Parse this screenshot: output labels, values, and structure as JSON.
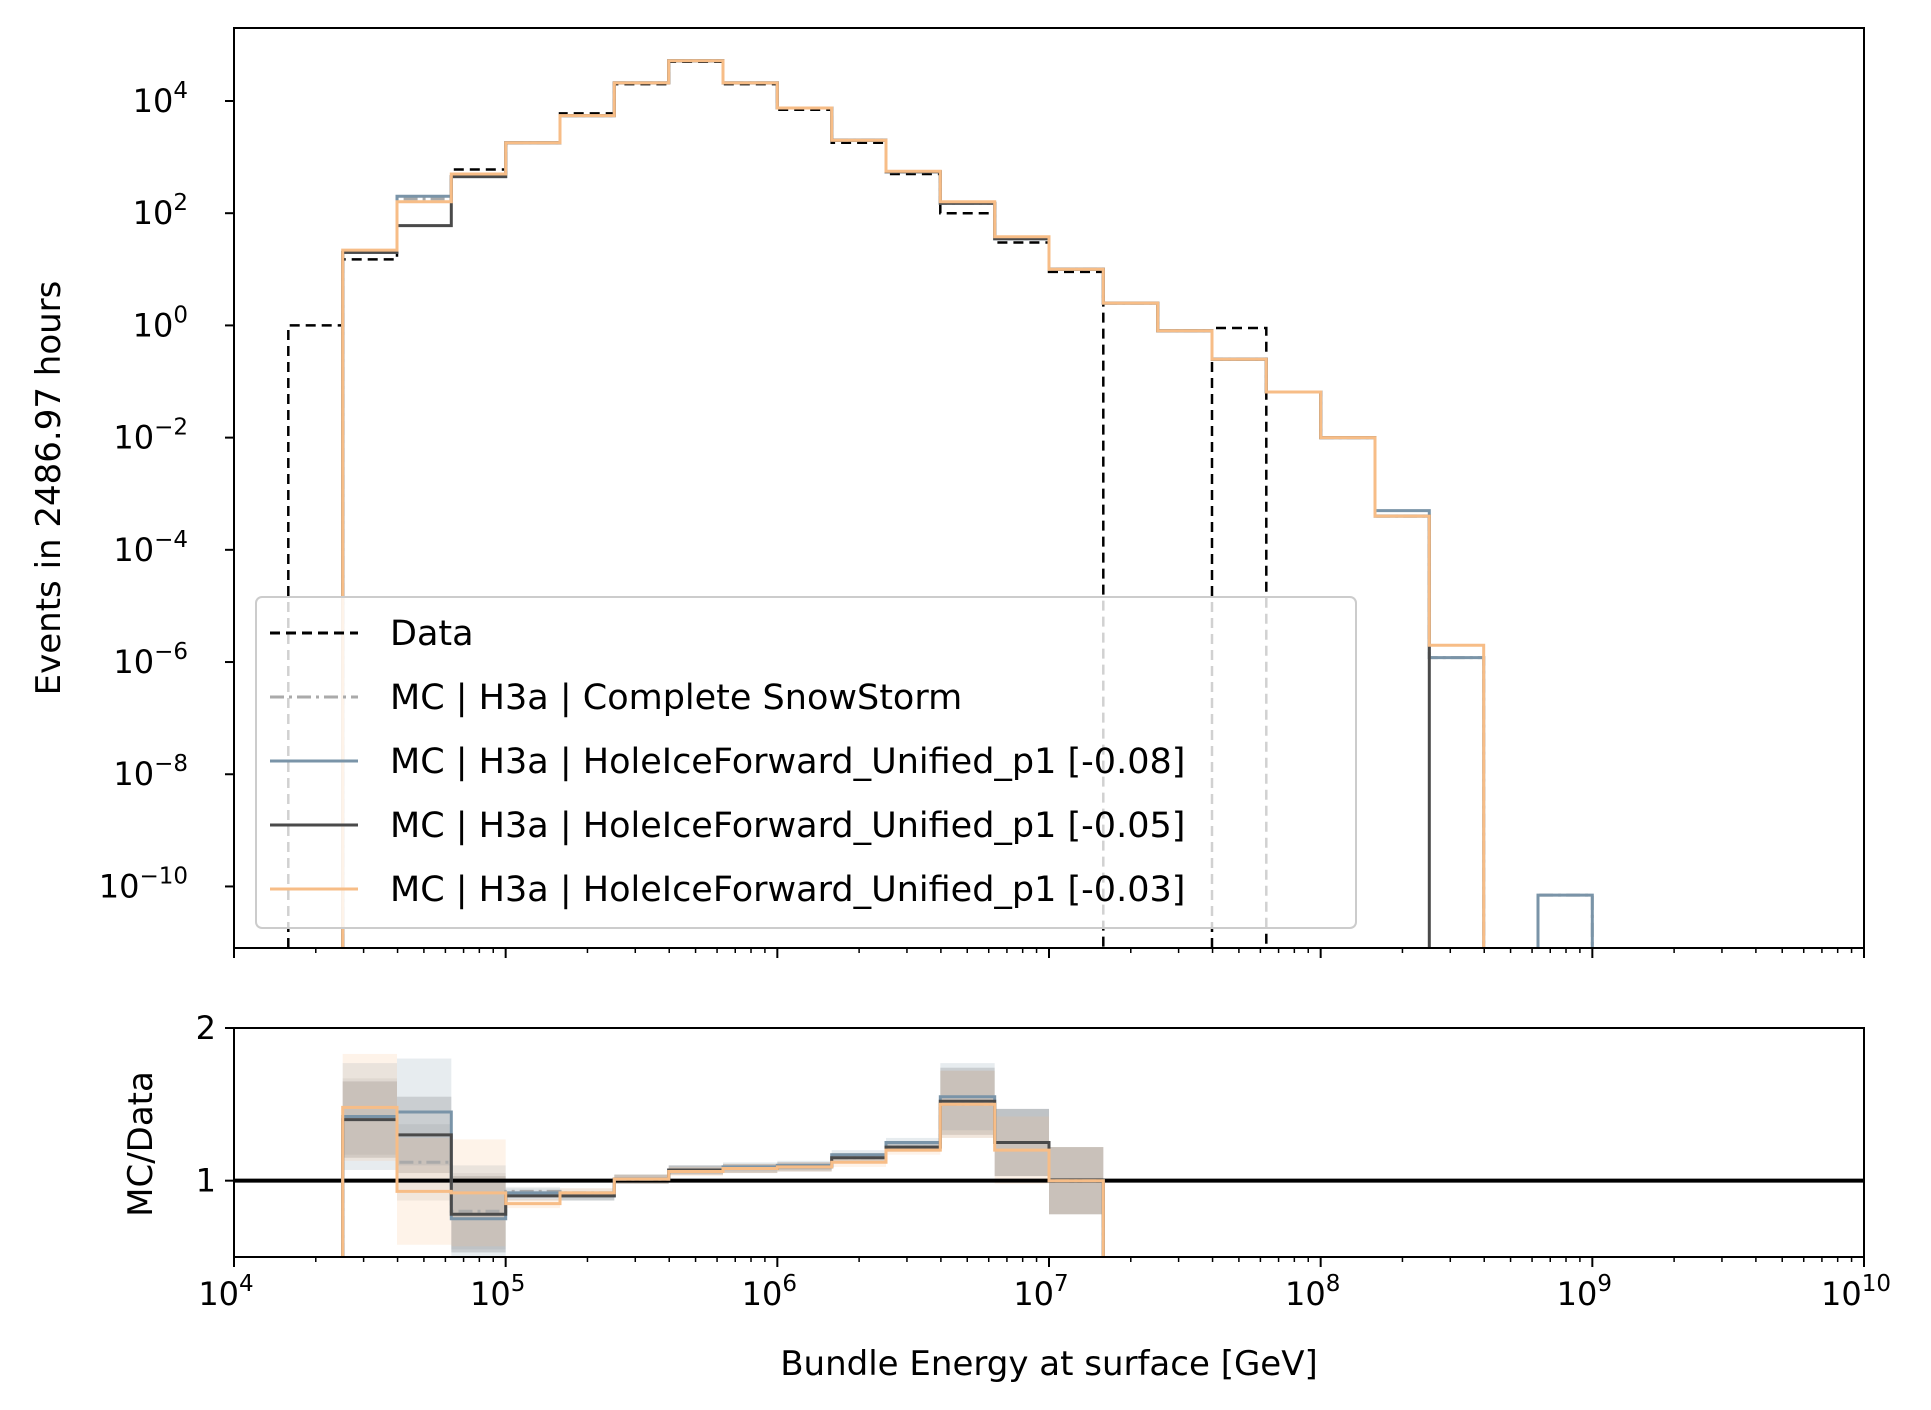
{
  "chart_data": [
    {
      "type": "step",
      "panel": "main",
      "ylabel": "Events in 2486.97 hours",
      "xscale": "log",
      "yscale": "log",
      "xlim": [
        10000,
        10000000000
      ],
      "ylim": [
        8e-12,
        200000
      ],
      "y_ticks": [
        {
          "value": 10000.0,
          "label": "10^4"
        },
        {
          "value": 100.0,
          "label": "10^2"
        },
        {
          "value": 1,
          "label": "10^0"
        },
        {
          "value": 0.01,
          "label": "10^-2"
        },
        {
          "value": 0.0001,
          "label": "10^-4"
        },
        {
          "value": 1e-06,
          "label": "10^-6"
        },
        {
          "value": 1e-08,
          "label": "10^-8"
        },
        {
          "value": 1e-10,
          "label": "10^-10"
        }
      ],
      "bin_edges_log10": [
        4.0,
        4.2,
        4.4,
        4.6,
        4.8,
        5.0,
        5.2,
        5.4,
        5.6,
        5.8,
        6.0,
        6.2,
        6.4,
        6.6,
        6.8,
        7.0,
        7.2,
        7.4,
        7.6,
        7.8,
        8.0,
        8.2,
        8.4,
        8.6,
        8.8,
        9.0,
        9.2,
        9.4,
        9.6,
        9.8,
        10.0
      ],
      "legend": {
        "location": "lower-left",
        "entries": [
          {
            "label": "Data",
            "style": "dashed",
            "color": "#000000"
          },
          {
            "label": "MC | H3a | Complete SnowStorm",
            "style": "dashdot",
            "color": "#aaaaaa"
          },
          {
            "label": "MC | H3a | HoleIceForward_Unified_p1 [-0.08]",
            "style": "solid",
            "color": "#7a94a8"
          },
          {
            "label": "MC | H3a | HoleIceForward_Unified_p1 [-0.05]",
            "style": "solid",
            "color": "#4a4a4a"
          },
          {
            "label": "MC | H3a | HoleIceForward_Unified_p1 [-0.03]",
            "style": "solid",
            "color": "#f7bd87"
          }
        ]
      },
      "series": [
        {
          "name": "Data",
          "color": "#000000",
          "values": [
            null,
            1,
            15,
            200,
            600,
            1800,
            6000,
            20000,
            50000,
            20000,
            7000,
            1800,
            500,
            100,
            30,
            9,
            null,
            null,
            0.9,
            null,
            null,
            null,
            null,
            null,
            null,
            null,
            null,
            null,
            null,
            null
          ]
        },
        {
          "name": "MC | H3a | Complete SnowStorm",
          "color": "#aaaaaa",
          "values": [
            null,
            null,
            20,
            180,
            500,
            1800,
            5500,
            21000,
            52000,
            21000,
            7500,
            2000,
            550,
            150,
            35,
            10,
            2.5,
            0.8,
            0.25,
            0.065,
            0.01,
            0.0004,
            1.2e-06,
            null,
            7e-11,
            null,
            null,
            null,
            null,
            null
          ]
        },
        {
          "name": "MC | H3a | HoleIceForward_Unified_p1 [-0.08]",
          "color": "#7a94a8",
          "values": [
            null,
            null,
            20,
            200,
            450,
            1800,
            5500,
            21000,
            52000,
            21000,
            7500,
            2000,
            550,
            150,
            35,
            10,
            2.5,
            0.8,
            0.25,
            0.065,
            0.01,
            0.0005,
            1.2e-06,
            null,
            7e-11,
            null,
            null,
            null,
            null,
            null
          ]
        },
        {
          "name": "MC | H3a | HoleIceForward_Unified_p1 [-0.05]",
          "color": "#4a4a4a",
          "values": [
            null,
            null,
            20,
            60,
            450,
            1800,
            5500,
            21000,
            52000,
            21000,
            7500,
            2000,
            550,
            150,
            35,
            10,
            2.5,
            0.8,
            0.25,
            0.065,
            0.01,
            0.0004,
            null,
            null,
            null,
            null,
            null,
            null,
            null,
            null
          ]
        },
        {
          "name": "MC | H3a | HoleIceForward_Unified_p1 [-0.03]",
          "color": "#f7bd87",
          "values": [
            null,
            null,
            22,
            160,
            500,
            1800,
            5500,
            21000,
            52000,
            21000,
            7500,
            2000,
            560,
            160,
            38,
            10,
            2.5,
            0.8,
            0.25,
            0.065,
            0.01,
            0.0004,
            2e-06,
            null,
            null,
            null,
            null,
            null,
            null,
            null
          ]
        }
      ]
    },
    {
      "type": "step",
      "panel": "ratio",
      "xlabel": "Bundle Energy at surface [GeV]",
      "ylabel": "MC/Data",
      "xscale": "log",
      "xlim": [
        10000,
        10000000000
      ],
      "ylim": [
        0.5,
        2
      ],
      "y_ticks": [
        {
          "value": 1,
          "label": "1"
        },
        {
          "value": 2,
          "label": "2"
        }
      ],
      "x_ticks": [
        {
          "value": 4,
          "label": "10^4"
        },
        {
          "value": 5,
          "label": "10^5"
        },
        {
          "value": 6,
          "label": "10^6"
        },
        {
          "value": 7,
          "label": "10^7"
        },
        {
          "value": 8,
          "label": "10^8"
        },
        {
          "value": 9,
          "label": "10^9"
        },
        {
          "value": 10,
          "label": "10^10"
        }
      ],
      "reference_line": 1,
      "series": [
        {
          "name": "MC | H3a | Complete SnowStorm",
          "color": "#aaaaaa",
          "values": [
            null,
            null,
            1.42,
            1.12,
            0.8,
            0.93,
            0.92,
            1.01,
            1.07,
            1.08,
            1.09,
            1.15,
            1.22,
            1.5,
            1.25,
            1.0
          ]
        },
        {
          "name": "MC | H3a | HoleIceForward_Unified_p1 [-0.08]",
          "color": "#7a94a8",
          "values": [
            null,
            null,
            1.42,
            1.45,
            0.75,
            0.92,
            0.9,
            1.01,
            1.07,
            1.09,
            1.1,
            1.17,
            1.25,
            1.55,
            1.25,
            1.0
          ]
        },
        {
          "name": "MC | H3a | HoleIceForward_Unified_p1 [-0.05]",
          "color": "#4a4a4a",
          "values": [
            null,
            null,
            1.4,
            1.3,
            0.78,
            0.9,
            0.9,
            1.01,
            1.07,
            1.08,
            1.09,
            1.15,
            1.22,
            1.52,
            1.25,
            1.0
          ]
        },
        {
          "name": "MC | H3a | HoleIceForward_Unified_p1 [-0.03]",
          "color": "#f7bd87",
          "values": [
            null,
            null,
            1.48,
            0.93,
            0.92,
            0.85,
            0.92,
            1.01,
            1.06,
            1.08,
            1.09,
            1.12,
            1.2,
            1.5,
            1.2,
            1.0
          ]
        }
      ]
    }
  ]
}
